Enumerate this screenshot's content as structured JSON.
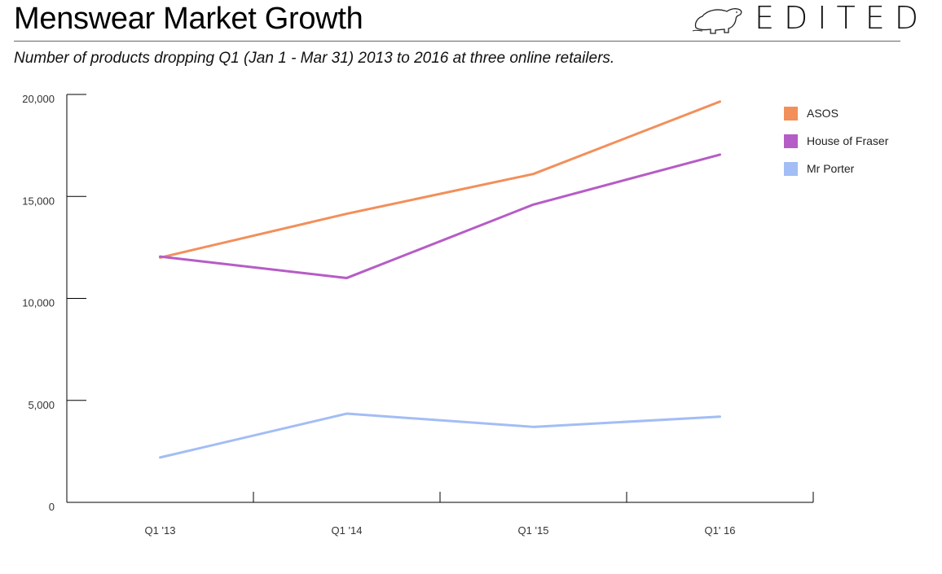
{
  "header": {
    "title": "Menswear Market Growth",
    "subtitle": "Number of products dropping Q1 (Jan 1 - Mar 31) 2013 to 2016 at three online retailers.",
    "logo_text": "EDITED",
    "logo_icon": "polar-bear-icon"
  },
  "chart_data": {
    "type": "line",
    "title": "Menswear Market Growth",
    "subtitle": "Number of products dropping Q1 (Jan 1 - Mar 31) 2013 to 2016 at three online retailers.",
    "categories": [
      "Q1 '13",
      "Q1 '14",
      "Q1 '15",
      "Q1' 16"
    ],
    "ylim": [
      0,
      20000
    ],
    "yticks": [
      0,
      5000,
      10000,
      15000,
      20000
    ],
    "ytick_labels": [
      "0",
      "5,000",
      "10,000",
      "15,000",
      "20,000"
    ],
    "xlabel": "",
    "ylabel": "",
    "grid": false,
    "legend_position": "top-right",
    "series": [
      {
        "name": "ASOS",
        "color": "#f28f5a",
        "values": [
          12000,
          14150,
          16100,
          19650
        ]
      },
      {
        "name": "House of Fraser",
        "color": "#b65cc6",
        "values": [
          12050,
          11000,
          14600,
          17050
        ]
      },
      {
        "name": "Mr Porter",
        "color": "#a3bdf5",
        "values": [
          2200,
          4350,
          3700,
          4200
        ]
      }
    ]
  }
}
